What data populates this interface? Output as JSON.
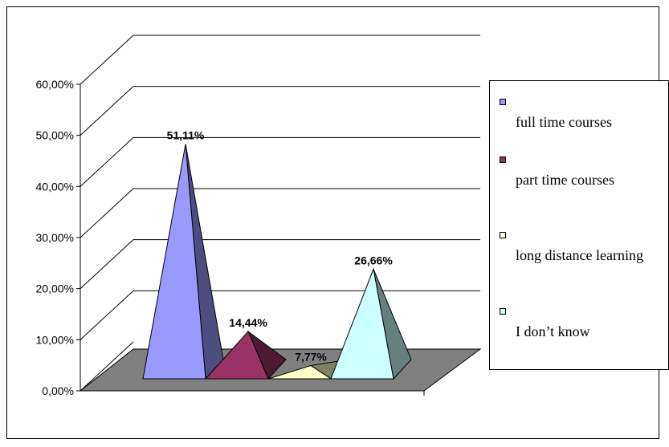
{
  "chart_data": {
    "type": "bar",
    "categories": [
      "full time courses",
      "part time courses",
      "long distance learning",
      "I don’t know"
    ],
    "values": [
      51.11,
      14.44,
      7.77,
      26.66
    ],
    "data_labels": [
      "51,11%",
      "14,44%",
      "7,77%",
      "26,66%"
    ],
    "colors": [
      "#9999ff",
      "#993366",
      "#ffffcc",
      "#ccffff"
    ],
    "ylim": [
      0,
      60
    ],
    "yticks": [
      "0,00%",
      "10,00%",
      "20,00%",
      "30,00%",
      "40,00%",
      "50,00%",
      "60,00%"
    ],
    "gridlines": true,
    "legend_position": "right",
    "bar_shape": "pyramid-3d",
    "floor_color": "#808080"
  }
}
